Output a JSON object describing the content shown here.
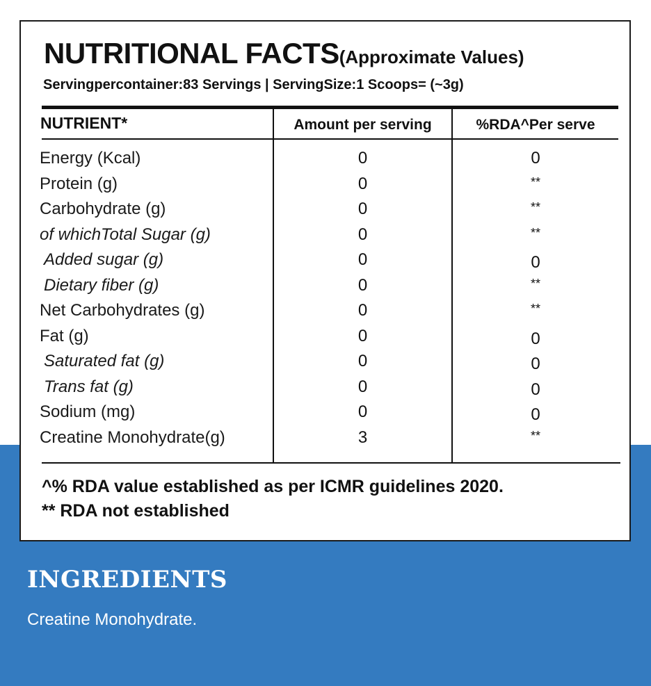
{
  "panel": {
    "title_main": "NUTRITIONAL FACTS",
    "title_sub": "(Approximate Values)",
    "serving_info": "Servingpercontainer:83 Servings | ServingSize:1 Scoops= (~3g)"
  },
  "table": {
    "headers": {
      "nutrient": "NUTRIENT*",
      "amount": "Amount per serving",
      "rda": "%RDA^Per serve"
    },
    "rows": [
      {
        "name": "Energy (Kcal)",
        "amount": "0",
        "rda": "0"
      },
      {
        "name": "Protein (g)",
        "amount": "0",
        "rda": "**"
      },
      {
        "name": "Carbohydrate (g)",
        "amount": "0",
        "rda": "**"
      },
      {
        "name": "of whichTotal Sugar (g)",
        "amount": "0",
        "rda": "**"
      },
      {
        "name": "Added sugar (g)",
        "amount": "0",
        "rda": "0"
      },
      {
        "name": "Dietary fiber (g)",
        "amount": "0",
        "rda": "**"
      },
      {
        "name": "Net Carbohydrates (g)",
        "amount": "0",
        "rda": "**"
      },
      {
        "name": "Fat (g)",
        "amount": "0",
        "rda": "0"
      },
      {
        "name": "Saturated fat (g)",
        "amount": "0",
        "rda": "0"
      },
      {
        "name": "Trans fat (g)",
        "amount": "0",
        "rda": "0"
      },
      {
        "name": "Sodium (mg)",
        "amount": "0",
        "rda": "0"
      },
      {
        "name": "Creatine Monohydrate(g)",
        "amount": "3",
        "rda": "**"
      }
    ]
  },
  "footnotes": {
    "line1": "^% RDA value established as per ICMR guidelines 2020.",
    "line2": "** RDA not established"
  },
  "ingredients": {
    "title": "INGREDIENTS",
    "text": "Creatine Monohydrate."
  },
  "colors": {
    "accent_blue": "#347bc0"
  }
}
